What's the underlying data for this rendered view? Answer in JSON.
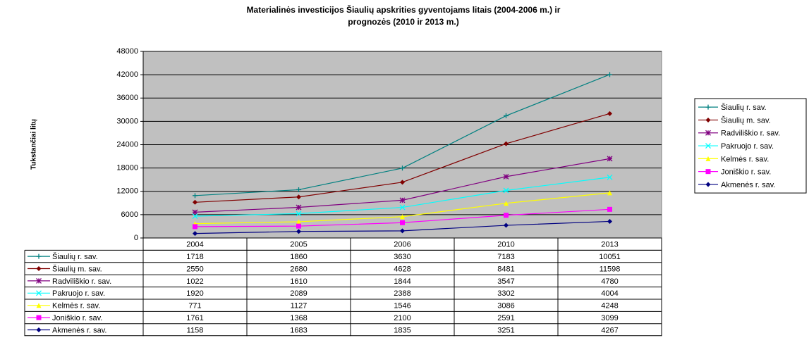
{
  "chart_data": {
    "type": "line",
    "stacked": true,
    "title": [
      "Materialinės investicijos Šiaulių apskrities gyventojams litais (2004-2006 m.) ir",
      "prognozės (2010 ir 2013 m.)"
    ],
    "ylabel": "Tukstančiai litų",
    "categories": [
      "2004",
      "2005",
      "2006",
      "2010",
      "2013"
    ],
    "ylim": [
      0,
      48000
    ],
    "yticks": [
      0,
      6000,
      12000,
      18000,
      24000,
      30000,
      36000,
      42000,
      48000
    ],
    "grid": true,
    "legend": "right",
    "plot_background": "#c0c0c0",
    "series": [
      {
        "name": "Šiaulių r. sav.",
        "color": "#008080",
        "marker": "plus",
        "values": [
          1718,
          1860,
          3630,
          7183,
          10051
        ]
      },
      {
        "name": "Šiaulių m. sav.",
        "color": "#800000",
        "marker": "diamond",
        "values": [
          2550,
          2680,
          4628,
          8481,
          11598
        ]
      },
      {
        "name": "Radviliškio r. sav.",
        "color": "#800080",
        "marker": "star",
        "values": [
          1022,
          1610,
          1844,
          3547,
          4780
        ]
      },
      {
        "name": "Pakruojo r. sav.",
        "color": "#00ffff",
        "marker": "x",
        "values": [
          1920,
          2089,
          2388,
          3302,
          4004
        ]
      },
      {
        "name": "Kelmės r. sav.",
        "color": "#ffff00",
        "marker": "triangle",
        "values": [
          771,
          1127,
          1546,
          3086,
          4248
        ]
      },
      {
        "name": "Joniškio r. sav.",
        "color": "#ff00ff",
        "marker": "square",
        "values": [
          1761,
          1368,
          2100,
          2591,
          3099
        ]
      },
      {
        "name": "Akmenės r. sav.",
        "color": "#000080",
        "marker": "diamond",
        "values": [
          1158,
          1683,
          1835,
          3251,
          4267
        ]
      }
    ]
  }
}
